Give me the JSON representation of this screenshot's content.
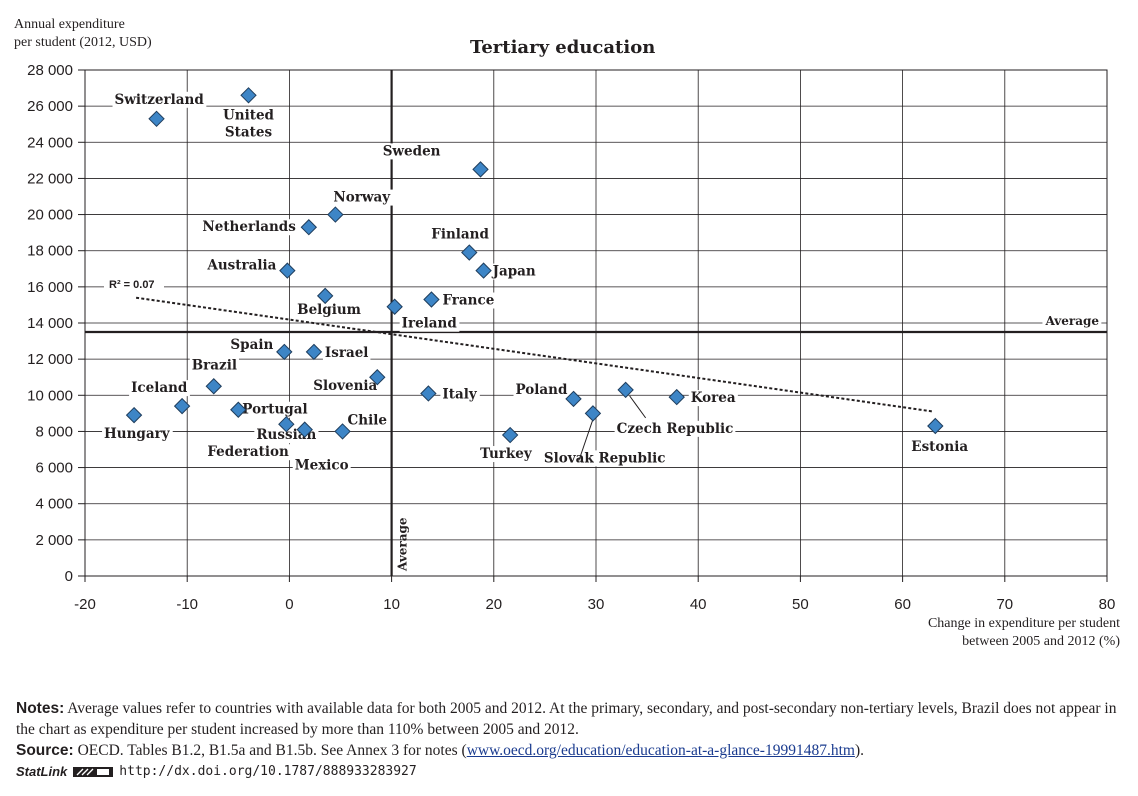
{
  "chart_data": {
    "type": "scatter",
    "title": "Tertiary education",
    "ylabel_lines": [
      "Annual expenditure",
      "per student  (2012, USD)"
    ],
    "xlabel_lines": [
      "Change in expenditure per student",
      "between 2005 and 2012 (%)"
    ],
    "xlim": [
      -20,
      80
    ],
    "ylim": [
      0,
      28000
    ],
    "xticks": [
      -20,
      -10,
      0,
      10,
      20,
      30,
      40,
      50,
      60,
      70,
      80
    ],
    "yticks": [
      0,
      2000,
      4000,
      6000,
      8000,
      10000,
      12000,
      14000,
      16000,
      18000,
      20000,
      22000,
      24000,
      26000,
      28000
    ],
    "ytick_labels": [
      "0",
      "2 000",
      "4 000",
      "6 000",
      "8 000",
      "10 000",
      "12 000",
      "14 000",
      "16 000",
      "18 000",
      "20 000",
      "22 000",
      "24 000",
      "26 000",
      "28 000"
    ],
    "grid": true,
    "marker_color": "#3d85c6",
    "average": {
      "x": 10,
      "y": 13500,
      "label": "Average"
    },
    "trendline": {
      "label": "R² = 0.07",
      "x": [
        -15,
        63
      ],
      "y": [
        15400,
        9100
      ]
    },
    "points": [
      {
        "name": "Switzerland",
        "x": -13,
        "y": 25300
      },
      {
        "name": "United States",
        "x": -4,
        "y": 26600
      },
      {
        "name": "Sweden",
        "x": 18.7,
        "y": 22500
      },
      {
        "name": "Norway",
        "x": 4.5,
        "y": 20000
      },
      {
        "name": "Netherlands",
        "x": 1.9,
        "y": 19300
      },
      {
        "name": "Finland",
        "x": 17.6,
        "y": 17900
      },
      {
        "name": "Japan",
        "x": 19,
        "y": 16900
      },
      {
        "name": "Australia",
        "x": -0.2,
        "y": 16900
      },
      {
        "name": "Belgium",
        "x": 3.5,
        "y": 15500
      },
      {
        "name": "France",
        "x": 13.9,
        "y": 15300
      },
      {
        "name": "Ireland",
        "x": 10.3,
        "y": 14900
      },
      {
        "name": "Spain",
        "x": -0.5,
        "y": 12400
      },
      {
        "name": "Israel",
        "x": 2.4,
        "y": 12400
      },
      {
        "name": "Slovenia",
        "x": 8.6,
        "y": 11000
      },
      {
        "name": "Brazil",
        "x": -7.4,
        "y": 10500
      },
      {
        "name": "Iceland",
        "x": -10.5,
        "y": 9400
      },
      {
        "name": "Portugal",
        "x": -5,
        "y": 9200
      },
      {
        "name": "Hungary",
        "x": -15.2,
        "y": 8900
      },
      {
        "name": "Russian Federation",
        "x": -0.3,
        "y": 8400
      },
      {
        "name": "Mexico",
        "x": 1.5,
        "y": 8100
      },
      {
        "name": "Chile",
        "x": 5.2,
        "y": 8000
      },
      {
        "name": "Italy",
        "x": 13.6,
        "y": 10100
      },
      {
        "name": "Turkey",
        "x": 21.6,
        "y": 7800
      },
      {
        "name": "Poland",
        "x": 27.8,
        "y": 9800
      },
      {
        "name": "Slovak Republic",
        "x": 29.7,
        "y": 9000
      },
      {
        "name": "Czech Republic",
        "x": 32.9,
        "y": 10300
      },
      {
        "name": "Korea",
        "x": 37.9,
        "y": 9900
      },
      {
        "name": "Estonia",
        "x": 63.2,
        "y": 8300
      }
    ]
  },
  "notes": {
    "notes_label": "Notes:",
    "notes_text": " Average values refer to countries with available data for both 2005 and 2012. At the primary, secondary, and post-secondary non-tertiary levels, Brazil does not appear in the chart as expenditure per student increased by more than 110% between 2005 and 2012.",
    "source_label": "Source:",
    "source_text": " OECD. Tables B1.2, B1.5a and B1.5b. See Annex 3 for notes (",
    "source_link": "www.oecd.org/education/education-at-a-glance-19991487.htm",
    "source_end": ").",
    "statlink_brand": "StatLink",
    "statlink_url": "http://dx.doi.org/10.1787/888933283927"
  }
}
